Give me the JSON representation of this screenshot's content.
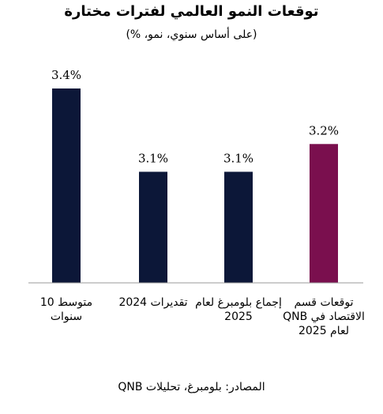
{
  "chart_data": {
    "type": "bar",
    "title": "توقعات النمو العالمي لفترات مختارة",
    "subtitle": "(على أساس سنوي، نمو، %)",
    "categories": [
      "متوسط 10 سنوات",
      "تقديرات 2024",
      "إجماع بلومبرغ لعام 2025",
      "توقعات قسم الاقتصاد في QNB لعام 2025"
    ],
    "values": [
      3.4,
      3.1,
      3.1,
      3.2
    ],
    "value_labels": [
      "3.4%",
      "3.1%",
      "3.1%",
      "3.2%"
    ],
    "bar_colors": [
      "#0c1738",
      "#0c1738",
      "#0c1738",
      "#7a0f4e"
    ],
    "ylim": [
      2.7,
      3.4
    ],
    "grid": false,
    "source": "المصادر: بلومبرغ، تحليلات QNB"
  }
}
